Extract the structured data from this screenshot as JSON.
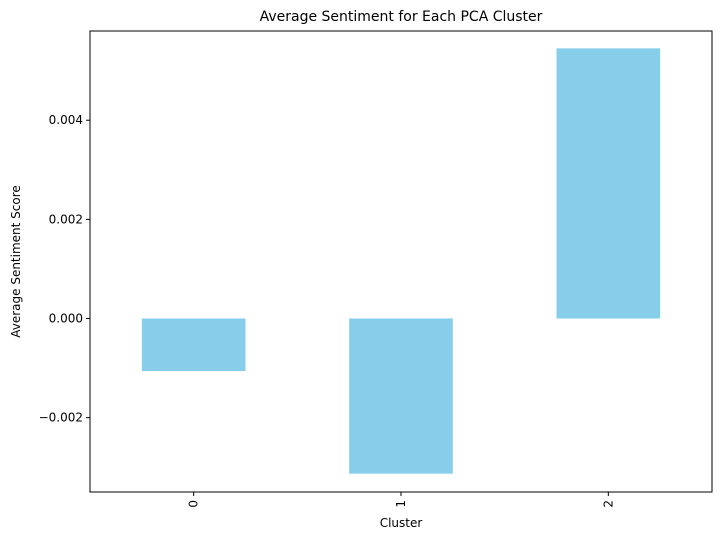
{
  "chart_data": {
    "type": "bar",
    "title": "Average Sentiment for Each PCA Cluster",
    "xlabel": "Cluster",
    "ylabel": "Average Sentiment Score",
    "categories": [
      "0",
      "1",
      "2"
    ],
    "values": [
      -0.00106,
      -0.00313,
      0.00545
    ],
    "ylim": [
      -0.0035,
      0.0058
    ],
    "yticks": [
      -0.002,
      0.0,
      0.002,
      0.004
    ],
    "ytick_labels": [
      "−0.002",
      "0.000",
      "0.002",
      "0.004"
    ],
    "bar_color": "#87CEEB",
    "grid": false,
    "legend": "none"
  }
}
